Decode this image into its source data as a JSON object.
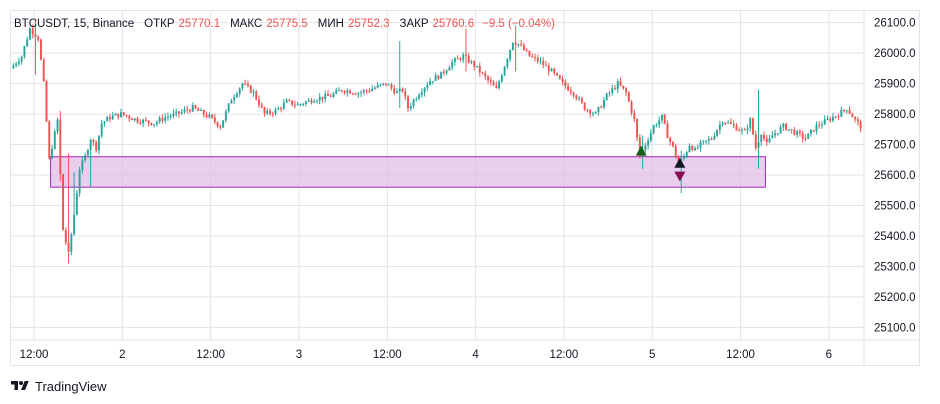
{
  "legend": {
    "symbol": "BTCUSDT, 15, Binance",
    "open_label": "ОТКР",
    "open_value": "25770.1",
    "high_label": "МАКС",
    "high_value": "25775.5",
    "low_label": "МИН",
    "low_value": "25752.3",
    "close_label": "ЗАКР",
    "close_value": "25760.6",
    "change_value": "−9.5 (−0.04%)"
  },
  "footer": {
    "brand": "TradingView",
    "logo_icon": "tradingview-logo-icon"
  },
  "colors": {
    "up": "#26a69a",
    "down": "#ef5350",
    "zone_fill": "#e1bee7",
    "zone_border": "#9c27b0",
    "grid": "#e0e3eb",
    "marker_up": "#1b5e20",
    "marker_down": "#880e4f",
    "marker_neutral": "#131722"
  },
  "chart_data": {
    "type": "candlestick",
    "title": "BTCUSDT, 15, Binance",
    "y_ticks": [
      "26100.0",
      "26000.0",
      "25900.0",
      "25800.0",
      "25700.0",
      "25600.0",
      "25500.0",
      "25400.0",
      "25300.0",
      "25200.0",
      "25100.0"
    ],
    "y_range": [
      25065,
      26135
    ],
    "x_ticks": [
      "12:00",
      "2",
      "12:00",
      "3",
      "12:00",
      "4",
      "12:00",
      "5",
      "12:00",
      "6"
    ],
    "x_tick_positions_bars": [
      8,
      40,
      72,
      104,
      136,
      168,
      200,
      232,
      264,
      296
    ],
    "bar_count": 308,
    "close_path": [
      [
        0,
        25950
      ],
      [
        4,
        25990
      ],
      [
        7,
        26080
      ],
      [
        10,
        26050
      ],
      [
        12,
        25900
      ],
      [
        14,
        25650
      ],
      [
        17,
        25780
      ],
      [
        19,
        25420
      ],
      [
        21,
        25340
      ],
      [
        23,
        25470
      ],
      [
        25,
        25620
      ],
      [
        27,
        25660
      ],
      [
        29,
        25720
      ],
      [
        31,
        25690
      ],
      [
        33,
        25770
      ],
      [
        36,
        25790
      ],
      [
        40,
        25800
      ],
      [
        46,
        25780
      ],
      [
        52,
        25770
      ],
      [
        56,
        25790
      ],
      [
        60,
        25800
      ],
      [
        66,
        25820
      ],
      [
        72,
        25790
      ],
      [
        76,
        25760
      ],
      [
        80,
        25850
      ],
      [
        84,
        25900
      ],
      [
        88,
        25870
      ],
      [
        92,
        25800
      ],
      [
        96,
        25810
      ],
      [
        100,
        25840
      ],
      [
        104,
        25830
      ],
      [
        110,
        25850
      ],
      [
        116,
        25860
      ],
      [
        120,
        25880
      ],
      [
        126,
        25870
      ],
      [
        130,
        25880
      ],
      [
        136,
        25900
      ],
      [
        140,
        25870
      ],
      [
        142,
        25880
      ],
      [
        144,
        25820
      ],
      [
        148,
        25870
      ],
      [
        152,
        25910
      ],
      [
        156,
        25930
      ],
      [
        160,
        25970
      ],
      [
        164,
        25990
      ],
      [
        168,
        25960
      ],
      [
        172,
        25920
      ],
      [
        176,
        25880
      ],
      [
        179,
        25960
      ],
      [
        182,
        26040
      ],
      [
        184,
        26030
      ],
      [
        188,
        25990
      ],
      [
        192,
        25970
      ],
      [
        196,
        25940
      ],
      [
        200,
        25900
      ],
      [
        204,
        25870
      ],
      [
        208,
        25820
      ],
      [
        212,
        25800
      ],
      [
        216,
        25860
      ],
      [
        220,
        25900
      ],
      [
        223,
        25870
      ],
      [
        226,
        25780
      ],
      [
        228,
        25660
      ],
      [
        230,
        25700
      ],
      [
        233,
        25760
      ],
      [
        236,
        25790
      ],
      [
        238,
        25730
      ],
      [
        240,
        25690
      ],
      [
        242,
        25640
      ],
      [
        244,
        25660
      ],
      [
        246,
        25700
      ],
      [
        248,
        25680
      ],
      [
        250,
        25700
      ],
      [
        254,
        25720
      ],
      [
        258,
        25780
      ],
      [
        262,
        25760
      ],
      [
        266,
        25740
      ],
      [
        268,
        25780
      ],
      [
        270,
        25690
      ],
      [
        272,
        25740
      ],
      [
        274,
        25700
      ],
      [
        276,
        25730
      ],
      [
        280,
        25760
      ],
      [
        284,
        25740
      ],
      [
        288,
        25720
      ],
      [
        292,
        25760
      ],
      [
        296,
        25780
      ],
      [
        300,
        25800
      ],
      [
        303,
        25820
      ],
      [
        306,
        25780
      ],
      [
        308,
        25760
      ]
    ],
    "spikes": [
      {
        "bar": 8,
        "high": 26110,
        "low": 25930
      },
      {
        "bar": 17,
        "high": 25810,
        "low": 25580
      },
      {
        "bar": 20,
        "high": 25670,
        "low": 25310
      },
      {
        "bar": 22,
        "high": 25610,
        "low": 25450
      },
      {
        "bar": 28,
        "high": 25660,
        "low": 25560
      },
      {
        "bar": 140,
        "high": 26040,
        "low": 25820
      },
      {
        "bar": 164,
        "high": 26080,
        "low": 25940
      },
      {
        "bar": 182,
        "high": 26090,
        "low": 25940
      },
      {
        "bar": 228,
        "high": 25730,
        "low": 25620
      },
      {
        "bar": 242,
        "high": 25680,
        "low": 25540
      },
      {
        "bar": 270,
        "high": 25880,
        "low": 25620
      }
    ],
    "zone": {
      "bar_start": 14,
      "bar_end": 273,
      "price_high": 25660,
      "price_low": 25560
    },
    "markers": [
      {
        "bar": 228,
        "price": 25680,
        "shape": "triangle-up",
        "color_key": "marker_up"
      },
      {
        "bar": 242,
        "price": 25640,
        "shape": "triangle-up",
        "color_key": "marker_neutral"
      },
      {
        "bar": 242,
        "price": 25595,
        "shape": "triangle-down",
        "color_key": "marker_down"
      }
    ]
  }
}
